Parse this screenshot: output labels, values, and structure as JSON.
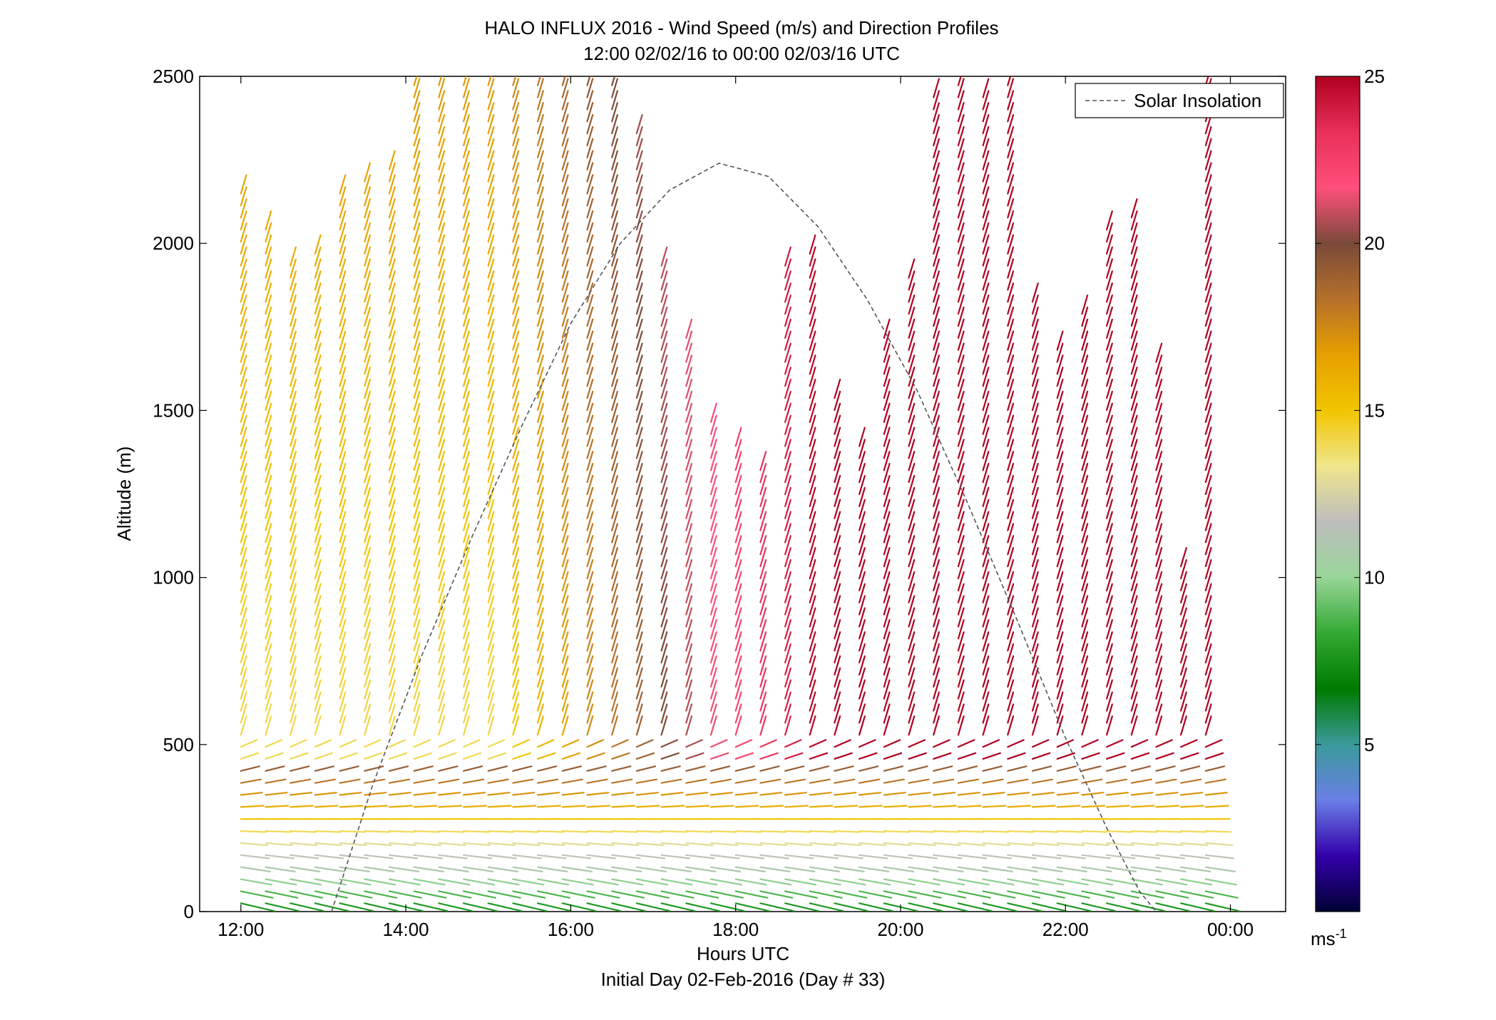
{
  "chart_data": {
    "type": "wind-barb-profile",
    "title": "HALO INFLUX 2016 - Wind Speed (m/s) and Direction Profiles",
    "subtitle": "12:00 02/02/16 to 00:00 02/03/16  UTC",
    "xlabel": "Hours UTC",
    "xlabel2": "Initial Day 02-Feb-2016 (Day # 33)",
    "ylabel": "Altitude (m)",
    "xlim": [
      11.5,
      24.67
    ],
    "ylim": [
      0,
      2500
    ],
    "x_ticks": [
      12,
      14,
      16,
      18,
      20,
      22,
      24
    ],
    "x_tick_labels": [
      "12:00",
      "14:00",
      "16:00",
      "18:00",
      "20:00",
      "22:00",
      "00:00"
    ],
    "y_ticks": [
      0,
      500,
      1000,
      1500,
      2000,
      2500
    ],
    "y_tick_labels": [
      "0",
      "500",
      "1000",
      "1500",
      "2000",
      "2500"
    ],
    "colorbar": {
      "min": 0,
      "max": 25,
      "ticks": [
        5,
        10,
        15,
        20,
        25
      ],
      "tick_labels": [
        "5",
        "10",
        "15",
        "20",
        "25"
      ],
      "unit_label": "ms",
      "unit_exponent": "-1",
      "colormap": [
        "#000033",
        "#3300aa",
        "#6a7fe6",
        "#3a9a9a",
        "#007a00",
        "#33aa33",
        "#99d599",
        "#bdbdbd",
        "#f0e68c",
        "#f2c500",
        "#e6a000",
        "#b5702b",
        "#7a4a3a",
        "#ff4f7b",
        "#e8305a",
        "#b00020"
      ]
    },
    "legend": {
      "entries": [
        "Solar Insolation"
      ],
      "placement": "top-right"
    },
    "solar_insolation_curve": {
      "x": [
        13.1,
        13.6,
        14.2,
        14.8,
        15.4,
        16.0,
        16.6,
        17.2,
        17.8,
        18.4,
        19.0,
        19.6,
        20.2,
        20.8,
        21.4,
        22.0,
        22.5,
        22.9,
        23.1
      ],
      "y": [
        0,
        380,
        770,
        1120,
        1450,
        1760,
        2000,
        2160,
        2240,
        2200,
        2050,
        1830,
        1560,
        1230,
        880,
        520,
        250,
        60,
        0
      ]
    },
    "profile_times": [
      12.0,
      12.3,
      12.6,
      12.9,
      13.2,
      13.5,
      13.8,
      14.1,
      14.4,
      14.7,
      15.0,
      15.3,
      15.6,
      15.9,
      16.2,
      16.5,
      16.8,
      17.1,
      17.4,
      17.7,
      18.0,
      18.3,
      18.6,
      18.9,
      19.2,
      19.5,
      19.8,
      20.1,
      20.4,
      20.7,
      21.0,
      21.3,
      21.6,
      21.9,
      22.2,
      22.5,
      22.8,
      23.1,
      23.4,
      23.7
    ],
    "profile_top_altitude_m": [
      2150,
      2050,
      1950,
      2000,
      2150,
      2200,
      2250,
      2500,
      2500,
      2500,
      2500,
      2500,
      2500,
      2500,
      2500,
      2500,
      2350,
      1950,
      1750,
      1500,
      1400,
      1350,
      1950,
      2000,
      1550,
      1400,
      1750,
      1900,
      2450,
      2500,
      2450,
      2500,
      1850,
      1700,
      1800,
      2050,
      2100,
      1650,
      1050,
      2500
    ],
    "speed_profile_note": "Speed vs altitude: ~8 m/s near surface, ~12 m/s at 150 m, ~16 m/s at 300 m, ~20 m/s near 450 m, increasing aloft; early hours slower aloft (13-17 m/s), later hours fast (>24 m/s)."
  }
}
